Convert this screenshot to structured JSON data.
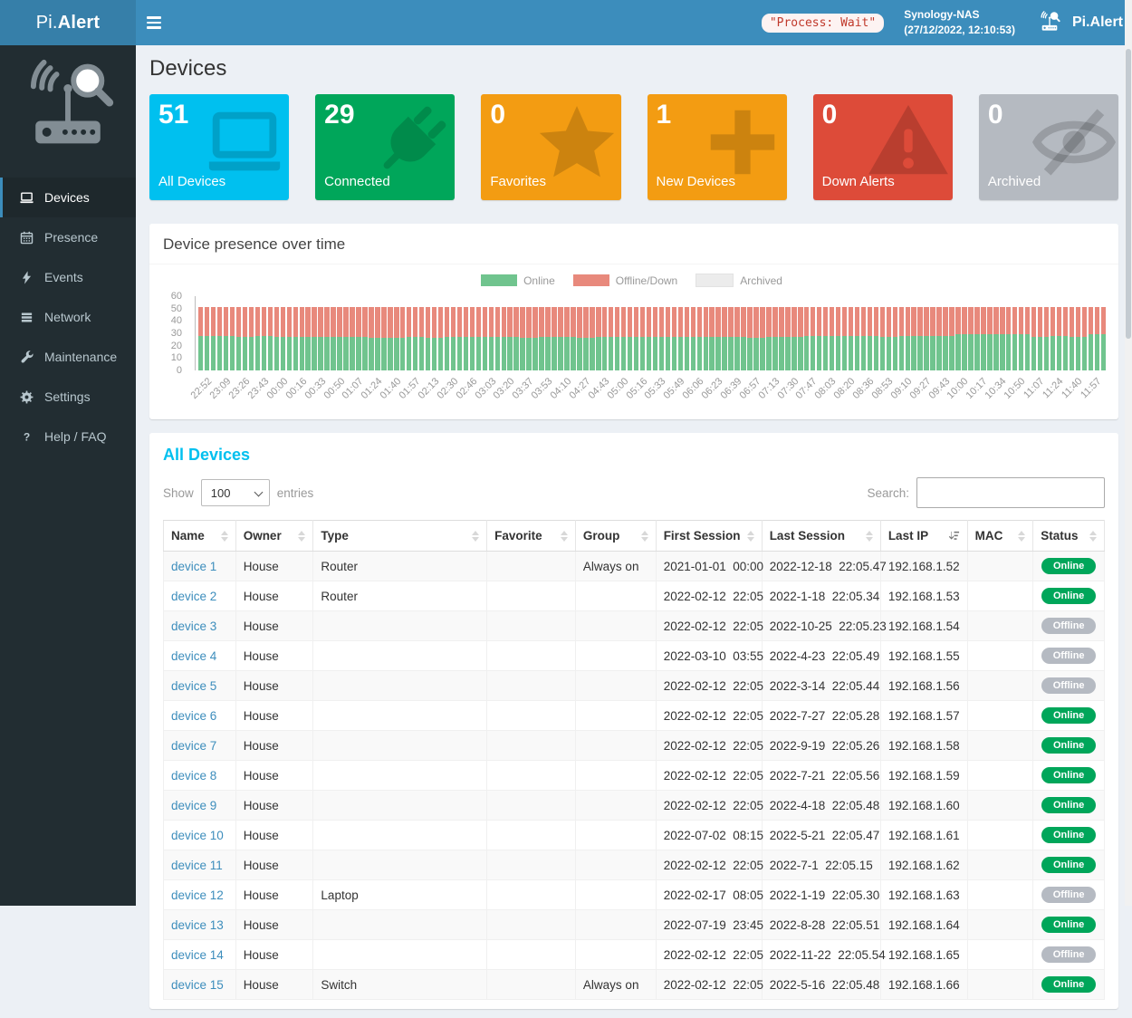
{
  "header": {
    "brand_prefix": "Pi.",
    "brand_bold": "Alert",
    "process_status": "\"Process: Wait\"",
    "nas_name": "Synology-NAS",
    "nas_time": "(27/12/2022, 12:10:53)",
    "brand_right": "Pi.Alert"
  },
  "sidebar": {
    "items": [
      {
        "label": "Devices",
        "icon": "laptop-icon",
        "active": true
      },
      {
        "label": "Presence",
        "icon": "calendar-icon",
        "active": false
      },
      {
        "label": "Events",
        "icon": "bolt-icon",
        "active": false
      },
      {
        "label": "Network",
        "icon": "rows-icon",
        "active": false
      },
      {
        "label": "Maintenance",
        "icon": "wrench-icon",
        "active": false
      },
      {
        "label": "Settings",
        "icon": "gear-icon",
        "active": false
      },
      {
        "label": "Help / FAQ",
        "icon": "question-icon",
        "active": false
      }
    ]
  },
  "page": {
    "title": "Devices"
  },
  "summary_boxes": [
    {
      "value": "51",
      "label": "All Devices",
      "color": "#00c0ef",
      "icon": "laptop-icon"
    },
    {
      "value": "29",
      "label": "Connected",
      "color": "#00a65a",
      "icon": "plug-icon"
    },
    {
      "value": "0",
      "label": "Favorites",
      "color": "#f39c12",
      "icon": "star-icon"
    },
    {
      "value": "1",
      "label": "New Devices",
      "color": "#f39c12",
      "icon": "plus-icon"
    },
    {
      "value": "0",
      "label": "Down Alerts",
      "color": "#dd4b39",
      "icon": "warning-icon"
    },
    {
      "value": "0",
      "label": "Archived",
      "color": "#b5bac1",
      "icon": "eye-slash-icon"
    }
  ],
  "chart_section": {
    "title": "Device presence over time"
  },
  "chart_data": {
    "type": "bar",
    "stacked": true,
    "title": "Device presence over time",
    "legend_position": "top-center",
    "grid": false,
    "ylim": [
      0,
      60
    ],
    "yticks": [
      0,
      10,
      20,
      30,
      40,
      50,
      60
    ],
    "bars_per_label": 3,
    "x": [
      "22:52",
      "23:09",
      "23:26",
      "23:43",
      "00:00",
      "00:16",
      "00:33",
      "00:50",
      "01:07",
      "01:24",
      "01:40",
      "01:57",
      "02:13",
      "02:30",
      "02:46",
      "03:03",
      "03:20",
      "03:37",
      "03:53",
      "04:10",
      "04:27",
      "04:43",
      "05:00",
      "05:16",
      "05:33",
      "05:49",
      "06:06",
      "06:23",
      "06:39",
      "06:57",
      "07:13",
      "07:30",
      "07:47",
      "08:03",
      "08:20",
      "08:36",
      "08:53",
      "09:10",
      "09:27",
      "09:43",
      "10:00",
      "10:17",
      "10:34",
      "10:50",
      "11:07",
      "11:24",
      "11:40",
      "11:57"
    ],
    "series": [
      {
        "name": "Online",
        "color": "#70c48e",
        "values": [
          28,
          28,
          27,
          28,
          27,
          27,
          27,
          27,
          27,
          26,
          26,
          27,
          26,
          27,
          27,
          27,
          27,
          26,
          27,
          27,
          26,
          27,
          27,
          27,
          27,
          27,
          27,
          27,
          27,
          26,
          27,
          27,
          28,
          28,
          28,
          28,
          27,
          28,
          28,
          28,
          29,
          29,
          29,
          29,
          27,
          28,
          27,
          29
        ]
      },
      {
        "name": "Offline/Down",
        "color": "#e8897c",
        "values": [
          23,
          23,
          24,
          23,
          24,
          24,
          24,
          24,
          24,
          25,
          25,
          24,
          25,
          24,
          24,
          24,
          24,
          25,
          24,
          24,
          25,
          24,
          24,
          24,
          24,
          24,
          24,
          24,
          24,
          25,
          24,
          24,
          23,
          23,
          23,
          23,
          24,
          23,
          23,
          23,
          22,
          22,
          22,
          22,
          24,
          23,
          24,
          22
        ]
      },
      {
        "name": "Archived",
        "color": "#ececec",
        "values": [
          0,
          0,
          0,
          0,
          0,
          0,
          0,
          0,
          0,
          0,
          0,
          0,
          0,
          0,
          0,
          0,
          0,
          0,
          0,
          0,
          0,
          0,
          0,
          0,
          0,
          0,
          0,
          0,
          0,
          0,
          0,
          0,
          0,
          0,
          0,
          0,
          0,
          0,
          0,
          0,
          0,
          0,
          0,
          0,
          0,
          0,
          0,
          0
        ]
      }
    ]
  },
  "table_section": {
    "title": "All Devices",
    "show_label": "Show",
    "entries_label": "entries",
    "page_length": "100",
    "search_label": "Search:",
    "search_value": "",
    "columns": [
      "Name",
      "Owner",
      "Type",
      "Favorite",
      "Group",
      "First Session",
      "Last Session",
      "Last IP",
      "MAC",
      "Status"
    ],
    "sorted_column": "Last IP",
    "rows": [
      {
        "name": "device 1",
        "owner": "House",
        "type": "Router",
        "favorite": "",
        "group": "Always on",
        "first_session": "2021-01-01  00:00",
        "last_session": "2022-12-18  22:05.47",
        "last_ip": "192.168.1.52",
        "mac": "",
        "status": "Online"
      },
      {
        "name": "device 2",
        "owner": "House",
        "type": "Router",
        "favorite": "",
        "group": "",
        "first_session": "2022-02-12  22:05",
        "last_session": "2022-1-18  22:05.34",
        "last_ip": "192.168.1.53",
        "mac": "",
        "status": "Online"
      },
      {
        "name": "device 3",
        "owner": "House",
        "type": "",
        "favorite": "",
        "group": "",
        "first_session": "2022-02-12  22:05",
        "last_session": "2022-10-25  22:05.23",
        "last_ip": "192.168.1.54",
        "mac": "",
        "status": "Offline"
      },
      {
        "name": "device 4",
        "owner": "House",
        "type": "",
        "favorite": "",
        "group": "",
        "first_session": "2022-03-10  03:55",
        "last_session": "2022-4-23  22:05.49",
        "last_ip": "192.168.1.55",
        "mac": "",
        "status": "Offline"
      },
      {
        "name": "device 5",
        "owner": "House",
        "type": "",
        "favorite": "",
        "group": "",
        "first_session": "2022-02-12  22:05",
        "last_session": "2022-3-14  22:05.44",
        "last_ip": "192.168.1.56",
        "mac": "",
        "status": "Offline"
      },
      {
        "name": "device 6",
        "owner": "House",
        "type": "",
        "favorite": "",
        "group": "",
        "first_session": "2022-02-12  22:05",
        "last_session": "2022-7-27  22:05.28",
        "last_ip": "192.168.1.57",
        "mac": "",
        "status": "Online"
      },
      {
        "name": "device 7",
        "owner": "House",
        "type": "",
        "favorite": "",
        "group": "",
        "first_session": "2022-02-12  22:05",
        "last_session": "2022-9-19  22:05.26",
        "last_ip": "192.168.1.58",
        "mac": "",
        "status": "Online"
      },
      {
        "name": "device 8",
        "owner": "House",
        "type": "",
        "favorite": "",
        "group": "",
        "first_session": "2022-02-12  22:05",
        "last_session": "2022-7-21  22:05.56",
        "last_ip": "192.168.1.59",
        "mac": "",
        "status": "Online"
      },
      {
        "name": "device 9",
        "owner": "House",
        "type": "",
        "favorite": "",
        "group": "",
        "first_session": "2022-02-12  22:05",
        "last_session": "2022-4-18  22:05.48",
        "last_ip": "192.168.1.60",
        "mac": "",
        "status": "Online"
      },
      {
        "name": "device 10",
        "owner": "House",
        "type": "",
        "favorite": "",
        "group": "",
        "first_session": "2022-07-02  08:15",
        "last_session": "2022-5-21  22:05.47",
        "last_ip": "192.168.1.61",
        "mac": "",
        "status": "Online"
      },
      {
        "name": "device 11",
        "owner": "House",
        "type": "",
        "favorite": "",
        "group": "",
        "first_session": "2022-02-12  22:05",
        "last_session": "2022-7-1  22:05.15",
        "last_ip": "192.168.1.62",
        "mac": "",
        "status": "Online"
      },
      {
        "name": "device 12",
        "owner": "House",
        "type": "Laptop",
        "favorite": "",
        "group": "",
        "first_session": "2022-02-17  08:05",
        "last_session": "2022-1-19  22:05.30",
        "last_ip": "192.168.1.63",
        "mac": "",
        "status": "Offline"
      },
      {
        "name": "device 13",
        "owner": "House",
        "type": "",
        "favorite": "",
        "group": "",
        "first_session": "2022-07-19  23:45",
        "last_session": "2022-8-28  22:05.51",
        "last_ip": "192.168.1.64",
        "mac": "",
        "status": "Online"
      },
      {
        "name": "device 14",
        "owner": "House",
        "type": "",
        "favorite": "",
        "group": "",
        "first_session": "2022-02-12  22:05",
        "last_session": "2022-11-22  22:05.54",
        "last_ip": "192.168.1.65",
        "mac": "",
        "status": "Offline"
      },
      {
        "name": "device 15",
        "owner": "House",
        "type": "Switch",
        "favorite": "",
        "group": "Always on",
        "first_session": "2022-02-12  22:05",
        "last_session": "2022-5-16  22:05.48",
        "last_ip": "192.168.1.66",
        "mac": "",
        "status": "Online"
      }
    ]
  }
}
